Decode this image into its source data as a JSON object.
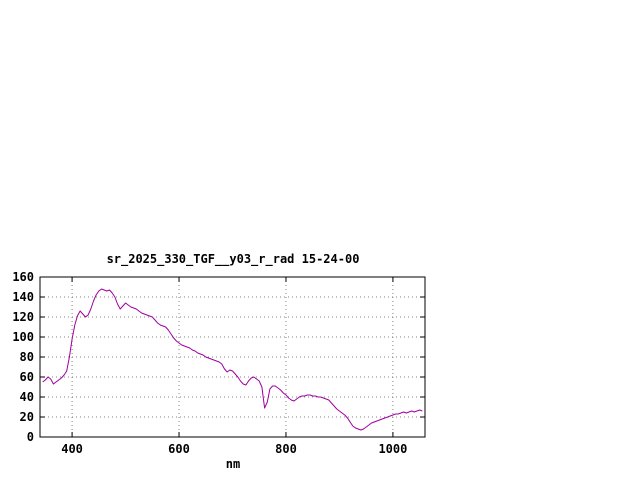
{
  "window": {
    "background_color": "#ffffff",
    "foreground_color": "#000000"
  },
  "chart_data": {
    "type": "line",
    "title": "sr_2025_330_TGF__y03_r_rad 15-24-00",
    "xlabel": "nm",
    "ylabel": "",
    "xlim": [
      340,
      1060
    ],
    "ylim": [
      0,
      160
    ],
    "x_ticks": [
      400,
      600,
      800,
      1000
    ],
    "y_ticks": [
      0,
      20,
      40,
      60,
      80,
      100,
      120,
      140,
      160
    ],
    "grid": true,
    "grid_style": "dotted",
    "grid_color": "#808080",
    "line_color": "#a000a0",
    "border_color": "#000000",
    "legend_position": "none",
    "series": [
      {
        "name": "sr_2025_330_TGF__y03_r_rad",
        "x": [
          345,
          350,
          355,
          360,
          365,
          370,
          375,
          380,
          385,
          390,
          395,
          400,
          405,
          410,
          415,
          420,
          425,
          430,
          435,
          440,
          445,
          450,
          455,
          460,
          465,
          470,
          475,
          480,
          485,
          490,
          495,
          500,
          505,
          510,
          515,
          520,
          525,
          530,
          535,
          540,
          545,
          550,
          555,
          560,
          565,
          570,
          575,
          580,
          585,
          590,
          595,
          600,
          605,
          610,
          615,
          620,
          625,
          630,
          635,
          640,
          645,
          650,
          655,
          660,
          665,
          670,
          675,
          680,
          685,
          690,
          695,
          700,
          705,
          710,
          715,
          720,
          725,
          730,
          735,
          740,
          745,
          750,
          755,
          760,
          765,
          770,
          775,
          780,
          785,
          790,
          795,
          800,
          805,
          810,
          815,
          820,
          825,
          830,
          835,
          840,
          845,
          850,
          855,
          860,
          865,
          870,
          875,
          880,
          885,
          890,
          895,
          900,
          905,
          910,
          915,
          920,
          925,
          930,
          935,
          940,
          945,
          950,
          955,
          960,
          965,
          970,
          975,
          980,
          985,
          990,
          995,
          1000,
          1005,
          1010,
          1015,
          1020,
          1025,
          1030,
          1035,
          1040,
          1045,
          1050,
          1055
        ],
        "y": [
          55,
          57,
          60,
          58,
          53,
          55,
          57,
          59,
          62,
          66,
          80,
          98,
          112,
          121,
          126,
          123,
          120,
          122,
          128,
          136,
          142,
          146,
          148,
          147,
          146,
          147,
          144,
          140,
          133,
          128,
          131,
          134,
          132,
          130,
          129,
          128,
          126,
          124,
          123,
          122,
          121,
          120,
          117,
          114,
          112,
          111,
          110,
          107,
          103,
          99,
          96,
          94,
          92,
          91,
          90,
          89,
          87,
          86,
          84,
          83,
          82,
          80,
          79,
          78,
          77,
          76,
          75,
          73,
          68,
          65,
          67,
          66,
          63,
          60,
          56,
          53,
          52,
          56,
          59,
          60,
          58,
          56,
          50,
          29,
          35,
          48,
          51,
          51,
          49,
          47,
          44,
          42,
          39,
          37,
          36,
          38,
          40,
          41,
          41,
          42,
          42,
          41,
          41,
          40,
          40,
          39,
          38,
          37,
          34,
          31,
          28,
          26,
          24,
          22,
          19,
          15,
          11,
          9,
          8,
          7,
          8,
          10,
          12,
          14,
          15,
          16,
          17,
          18,
          19,
          20,
          21,
          22,
          23,
          23,
          24,
          25,
          24,
          25,
          26,
          25,
          26,
          27,
          26
        ]
      }
    ]
  }
}
